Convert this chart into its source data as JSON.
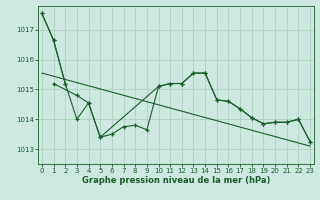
{
  "xlabel": "Graphe pression niveau de la mer (hPa)",
  "bg_color": "#cce8e0",
  "line_color": "#1a5c2a",
  "grid_color": "#aaccbb",
  "ylim": [
    1012.5,
    1017.8
  ],
  "xlim": [
    -0.3,
    23.3
  ],
  "yticks": [
    1013,
    1014,
    1015,
    1016,
    1017
  ],
  "xticks": [
    0,
    1,
    2,
    3,
    4,
    5,
    6,
    7,
    8,
    9,
    10,
    11,
    12,
    13,
    14,
    15,
    16,
    17,
    18,
    19,
    20,
    21,
    22,
    23
  ],
  "series_top": {
    "x": [
      0,
      1,
      2
    ],
    "y": [
      1017.55,
      1016.65,
      1015.2
    ]
  },
  "series_mid": {
    "x": [
      1,
      3,
      4,
      5,
      6,
      7,
      8,
      9,
      10,
      11,
      12,
      13,
      14,
      15,
      16,
      17,
      18,
      19,
      20,
      21,
      22,
      23
    ],
    "y": [
      1015.2,
      1014.8,
      1014.55,
      1013.4,
      1013.5,
      1013.75,
      1013.8,
      1013.65,
      1015.1,
      1015.2,
      1015.2,
      1015.55,
      1015.55,
      1014.65,
      1014.6,
      1014.35,
      1014.05,
      1013.85,
      1013.9,
      1013.9,
      1014.0,
      1013.25
    ]
  },
  "series_bot": {
    "x": [
      0,
      1,
      2,
      3,
      4,
      5,
      10,
      11,
      12,
      13,
      14,
      15,
      16,
      17,
      18,
      19,
      20,
      21,
      22,
      23
    ],
    "y": [
      1017.55,
      1016.65,
      1015.2,
      1014.0,
      1014.55,
      1013.4,
      1015.1,
      1015.2,
      1015.2,
      1015.55,
      1015.55,
      1014.65,
      1014.6,
      1014.35,
      1014.05,
      1013.85,
      1013.9,
      1013.9,
      1014.0,
      1013.25
    ]
  },
  "trend": {
    "x": [
      0,
      23
    ],
    "y": [
      1015.55,
      1013.1
    ]
  }
}
